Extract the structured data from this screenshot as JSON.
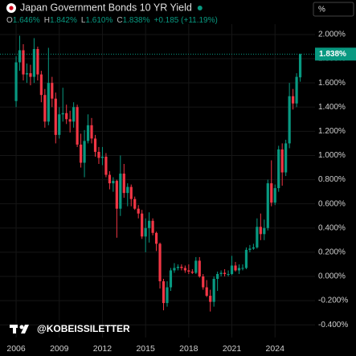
{
  "chart_data": {
    "type": "candlestick",
    "title": "Japan Government Bonds 10 YR Yield",
    "unit": "%",
    "ohlc_legend": [
      {
        "key": "O",
        "value": "1.646%"
      },
      {
        "key": "H",
        "value": "1.842%"
      },
      {
        "key": "L",
        "value": "1.610%"
      },
      {
        "key": "C",
        "value": "1.838%"
      }
    ],
    "change": "+0.185 (+11.19%)",
    "watermark": "@KOBEISSILETTER",
    "up_color": "#089981",
    "down_color": "#f23645",
    "x": [
      2006,
      2006.25,
      2006.5,
      2006.75,
      2007,
      2007.25,
      2007.5,
      2007.75,
      2008,
      2008.25,
      2008.5,
      2008.75,
      2009,
      2009.25,
      2009.5,
      2009.75,
      2010,
      2010.25,
      2010.5,
      2010.75,
      2011,
      2011.25,
      2011.5,
      2011.75,
      2012,
      2012.25,
      2012.5,
      2012.75,
      2013,
      2013.25,
      2013.5,
      2013.75,
      2014,
      2014.25,
      2014.5,
      2014.75,
      2015,
      2015.25,
      2015.5,
      2015.75,
      2016,
      2016.25,
      2016.5,
      2016.75,
      2017,
      2017.25,
      2017.5,
      2017.75,
      2018,
      2018.25,
      2018.5,
      2018.75,
      2019,
      2019.25,
      2019.5,
      2019.75,
      2020,
      2020.25,
      2020.5,
      2020.75,
      2021,
      2021.25,
      2021.5,
      2021.75,
      2022,
      2022.25,
      2022.5,
      2022.75,
      2023,
      2023.25,
      2023.5,
      2023.75,
      2024,
      2024.25,
      2024.5,
      2024.75,
      2025,
      2025.25,
      2025.5,
      2025.75
    ],
    "open": [
      1.45,
      1.77,
      1.87,
      1.67,
      1.68,
      1.65,
      1.88,
      1.67,
      1.5,
      1.28,
      1.6,
      1.47,
      1.17,
      1.34,
      1.35,
      1.3,
      1.28,
      1.4,
      1.09,
      0.94,
      1.12,
      1.25,
      1.14,
      1.03,
      0.98,
      0.99,
      0.84,
      0.77,
      0.79,
      0.56,
      0.85,
      0.69,
      0.74,
      0.64,
      0.56,
      0.52,
      0.33,
      0.4,
      0.46,
      0.36,
      0.27,
      -0.04,
      -0.22,
      -0.09,
      0.05,
      0.07,
      0.08,
      0.07,
      0.05,
      0.04,
      0.03,
      0.13,
      0.0,
      -0.09,
      -0.16,
      -0.21,
      -0.02,
      0.02,
      0.03,
      0.02,
      0.02,
      0.09,
      0.05,
      0.07,
      0.07,
      0.22,
      0.23,
      0.24,
      0.41,
      0.35,
      0.4,
      0.77,
      0.61,
      0.73,
      1.05,
      0.86,
      1.1,
      1.49,
      1.43,
      1.646
    ],
    "high": [
      1.82,
      1.99,
      1.92,
      1.76,
      1.75,
      1.97,
      1.9,
      1.7,
      1.55,
      1.89,
      1.65,
      1.52,
      1.4,
      1.56,
      1.42,
      1.37,
      1.44,
      1.42,
      1.18,
      1.21,
      1.34,
      1.31,
      1.17,
      1.07,
      1.07,
      1.02,
      0.87,
      0.82,
      0.8,
      1.0,
      0.93,
      0.77,
      0.76,
      0.66,
      0.59,
      0.55,
      0.48,
      0.53,
      0.48,
      0.37,
      0.28,
      -0.02,
      -0.04,
      0.07,
      0.11,
      0.1,
      0.1,
      0.09,
      0.1,
      0.06,
      0.16,
      0.16,
      0.02,
      -0.03,
      -0.11,
      0.0,
      0.04,
      0.05,
      0.06,
      0.05,
      0.17,
      0.12,
      0.1,
      0.1,
      0.24,
      0.26,
      0.27,
      0.48,
      0.52,
      0.47,
      0.8,
      0.96,
      0.76,
      1.08,
      1.1,
      1.13,
      1.6,
      1.55,
      1.68,
      1.842
    ],
    "low": [
      1.4,
      1.7,
      1.62,
      1.6,
      1.58,
      1.6,
      1.62,
      1.44,
      1.23,
      1.25,
      1.4,
      1.1,
      1.14,
      1.28,
      1.26,
      1.19,
      1.23,
      1.07,
      0.9,
      0.82,
      1.1,
      1.1,
      0.99,
      0.93,
      0.92,
      0.82,
      0.72,
      0.7,
      0.32,
      0.5,
      0.65,
      0.58,
      0.58,
      0.55,
      0.48,
      0.31,
      0.2,
      0.28,
      0.34,
      0.21,
      -0.1,
      -0.28,
      -0.25,
      -0.12,
      0.03,
      0.05,
      0.05,
      0.03,
      0.02,
      0.02,
      0.02,
      -0.01,
      -0.11,
      -0.17,
      -0.29,
      -0.25,
      -0.12,
      0.0,
      0.0,
      0.0,
      0.01,
      0.04,
      0.02,
      0.05,
      0.06,
      0.2,
      0.22,
      0.23,
      0.3,
      0.3,
      0.38,
      0.58,
      0.59,
      0.7,
      0.75,
      0.83,
      1.06,
      1.38,
      1.4,
      1.61
    ],
    "close": [
      1.77,
      1.87,
      1.67,
      1.68,
      1.65,
      1.88,
      1.67,
      1.5,
      1.28,
      1.6,
      1.47,
      1.17,
      1.34,
      1.35,
      1.3,
      1.28,
      1.4,
      1.09,
      0.94,
      1.12,
      1.25,
      1.14,
      1.03,
      0.98,
      0.99,
      0.84,
      0.77,
      0.79,
      0.56,
      0.85,
      0.69,
      0.74,
      0.64,
      0.56,
      0.52,
      0.33,
      0.4,
      0.46,
      0.36,
      0.27,
      -0.04,
      -0.22,
      -0.09,
      0.05,
      0.07,
      0.08,
      0.07,
      0.05,
      0.04,
      0.03,
      0.13,
      0.0,
      -0.09,
      -0.16,
      -0.21,
      -0.02,
      0.02,
      0.03,
      0.02,
      0.02,
      0.09,
      0.05,
      0.07,
      0.07,
      0.22,
      0.23,
      0.24,
      0.41,
      0.35,
      0.4,
      0.77,
      0.61,
      0.73,
      1.05,
      0.86,
      1.1,
      1.49,
      1.43,
      1.65,
      1.838
    ],
    "price_label": {
      "value": 1.838,
      "label": "1.838%"
    },
    "xlim": [
      2004.88,
      2026.78
    ],
    "xticks": [
      2006,
      2009,
      2012,
      2015,
      2018,
      2021,
      2024
    ],
    "ylim": [
      -0.505,
      2.086
    ],
    "yticks": [
      {
        "value": 2,
        "label": "2.000%"
      },
      {
        "value": 1.8,
        "label": "1.800%"
      },
      {
        "value": 1.6,
        "label": "1.600%"
      },
      {
        "value": 1.4,
        "label": "1.400%"
      },
      {
        "value": 1.2,
        "label": "1.200%"
      },
      {
        "value": 1,
        "label": "1.000%"
      },
      {
        "value": 0.8,
        "label": "0.800%"
      },
      {
        "value": 0.6,
        "label": "0.600%"
      },
      {
        "value": 0.4,
        "label": "0.400%"
      },
      {
        "value": 0.2,
        "label": "0.200%"
      },
      {
        "value": 0,
        "label": "0.000%"
      },
      {
        "value": -0.2,
        "label": "-0.200%"
      },
      {
        "value": -0.4,
        "label": "-0.400%"
      }
    ],
    "grid": true
  }
}
